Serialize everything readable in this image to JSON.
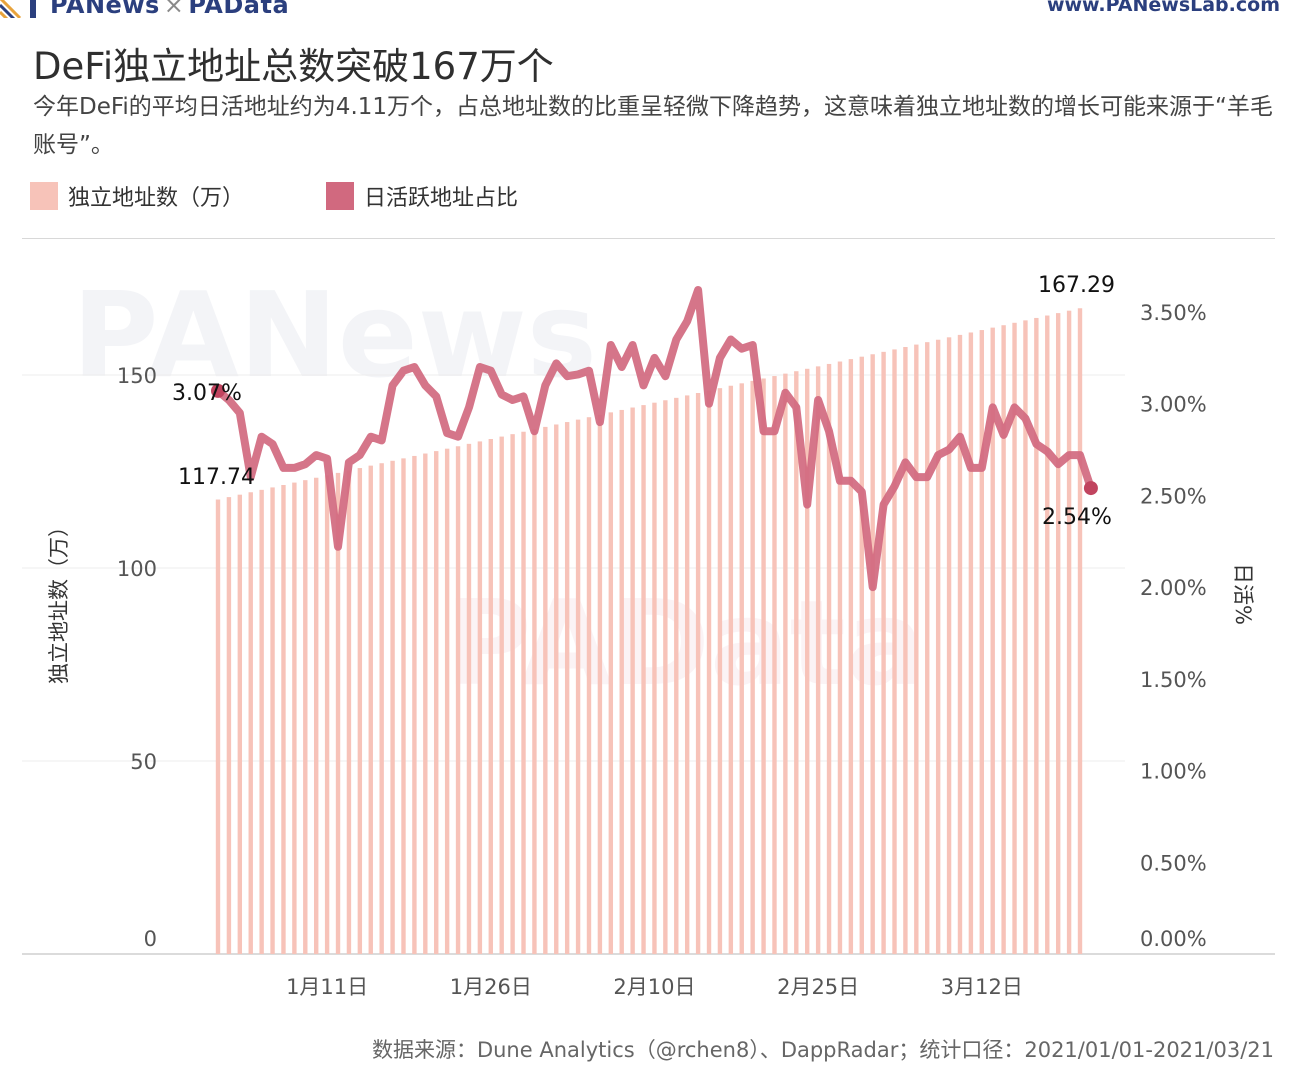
{
  "header": {
    "brand_left": "PANews",
    "brand_sep": "×",
    "brand_left_2": "PAData",
    "brand_right": "www.PANewsLab.com"
  },
  "title": "DeFi独立地址总数突破167万个",
  "subtitle": "今年DeFi的平均日活地址约为4.11万个，占总地址数的比重呈轻微下降趋势，这意味着独立地址数的增长可能来源于“羊毛账号”。",
  "legend": {
    "bar_label": "独立地址数（万）",
    "line_label": "日活跃地址占比"
  },
  "colors": {
    "bar": "#f7c3b9",
    "line": "#d1697f",
    "endpoint": "#c1445f",
    "grid": "#ececec",
    "axis_text": "#555555",
    "watermark_blue": "#2b3f7e"
  },
  "watermarks": [
    "PANews",
    "PAData"
  ],
  "source": "数据来源：Dune Analytics（@rchen8）、DappRadar；统计口径：2021/01/01-2021/03/21",
  "chart_data": {
    "type": "bar+line",
    "x_range": [
      "2021-01-01",
      "2021-03-21"
    ],
    "x_tick_labels": [
      "1月11日",
      "1月26日",
      "2月10日",
      "2月25日",
      "3月12日"
    ],
    "y_left": {
      "label": "独立地址数（万）",
      "min": 0,
      "max": 175,
      "ticks": [
        "0",
        "50",
        "100",
        "150"
      ]
    },
    "y_right": {
      "label": "日活%",
      "min": 0,
      "max": 3.5,
      "ticks": [
        "0.00%",
        "0.50%",
        "1.00%",
        "1.50%",
        "2.00%",
        "2.50%",
        "3.00%",
        "3.50%"
      ]
    },
    "series": [
      {
        "name": "独立地址数（万）",
        "axis": "left",
        "type": "bar",
        "start": 117.74,
        "end": 167.29
      },
      {
        "name": "日活跃地址占比",
        "axis": "right",
        "type": "line",
        "values": [
          3.07,
          3.02,
          2.95,
          2.6,
          2.82,
          2.78,
          2.65,
          2.65,
          2.67,
          2.72,
          2.7,
          2.22,
          2.68,
          2.72,
          2.82,
          2.8,
          3.1,
          3.18,
          3.2,
          3.1,
          3.04,
          2.84,
          2.82,
          2.98,
          3.2,
          3.18,
          3.05,
          3.02,
          3.04,
          2.85,
          3.1,
          3.22,
          3.15,
          3.16,
          3.18,
          2.9,
          3.32,
          3.2,
          3.32,
          3.1,
          3.25,
          3.15,
          3.35,
          3.45,
          3.62,
          3.0,
          3.25,
          3.35,
          3.3,
          3.32,
          2.85,
          2.85,
          3.06,
          2.98,
          2.45,
          3.02,
          2.85,
          2.58,
          2.58,
          2.52,
          2.0,
          2.45,
          2.55,
          2.68,
          2.6,
          2.6,
          2.72,
          2.75,
          2.82,
          2.65,
          2.65,
          2.98,
          2.83,
          2.98,
          2.92,
          2.78,
          2.74,
          2.67,
          2.72,
          2.72,
          2.54
        ]
      }
    ],
    "annotations": [
      {
        "series": "独立地址数（万）",
        "label": "117.74",
        "at": "start"
      },
      {
        "series": "独立地址数（万）",
        "label": "167.29",
        "at": "end"
      },
      {
        "series": "日活跃地址占比",
        "label": "3.07%",
        "at": "start"
      },
      {
        "series": "日活跃地址占比",
        "label": "2.54%",
        "at": "end"
      }
    ]
  }
}
